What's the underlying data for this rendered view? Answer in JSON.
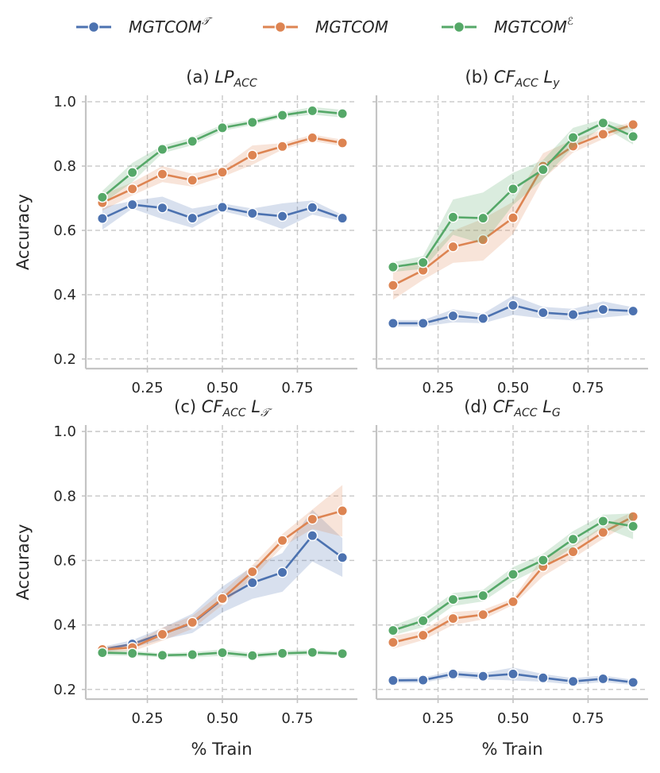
{
  "legend": [
    {
      "id": "t",
      "label": "MGTCOM",
      "sup": "𝒯",
      "color": "#4c72b0"
    },
    {
      "id": "m",
      "label": "MGTCOM",
      "sup": "",
      "color": "#dd8452"
    },
    {
      "id": "e",
      "label": "MGTCOM",
      "sup": "ℰ",
      "color": "#55a868"
    }
  ],
  "chart_data": [
    {
      "type": "line",
      "title_prefix": "(a)",
      "title_main": "LP",
      "title_sub": "ACC",
      "title_tail": "",
      "title_tail_sub": "",
      "xlabel": "",
      "ylabel": "Accuracy",
      "xticks": [
        0.25,
        0.5,
        0.75
      ],
      "xtick_labels": [
        "0.25",
        "0.50",
        "0.75"
      ],
      "yticks": [
        0.2,
        0.4,
        0.6,
        0.8,
        1.0
      ],
      "ytick_labels": [
        "0.2",
        "0.4",
        "0.6",
        "0.8",
        "1.0"
      ],
      "xlim": [
        0.05,
        0.95
      ],
      "ylim": [
        0.17,
        1.02
      ],
      "grid": true,
      "x": [
        0.1,
        0.2,
        0.3,
        0.4,
        0.5,
        0.6,
        0.7,
        0.8,
        0.9
      ],
      "series": [
        {
          "key": "t",
          "color": "#4c72b0",
          "values": [
            0.637,
            0.68,
            0.67,
            0.638,
            0.672,
            0.653,
            0.644,
            0.671,
            0.638
          ],
          "band": [
            0.035,
            0.012,
            0.035,
            0.03,
            0.012,
            0.015,
            0.04,
            0.022,
            0.01
          ]
        },
        {
          "key": "m",
          "color": "#dd8452",
          "values": [
            0.686,
            0.729,
            0.775,
            0.756,
            0.781,
            0.834,
            0.861,
            0.888,
            0.872
          ],
          "band": [
            0.025,
            0.02,
            0.025,
            0.02,
            0.015,
            0.03,
            0.01,
            0.01,
            0.01
          ]
        },
        {
          "key": "e",
          "color": "#55a868",
          "values": [
            0.703,
            0.78,
            0.852,
            0.877,
            0.919,
            0.936,
            0.958,
            0.972,
            0.963
          ],
          "band": [
            0.02,
            0.03,
            0.012,
            0.012,
            0.01,
            0.008,
            0.008,
            0.012,
            0.012
          ]
        }
      ]
    },
    {
      "type": "line",
      "title_prefix": "(b)",
      "title_main": "CF",
      "title_sub": "ACC",
      "title_tail": "L",
      "title_tail_sub": "y",
      "xlabel": "",
      "ylabel": "",
      "xticks": [
        0.25,
        0.5,
        0.75
      ],
      "xtick_labels": [
        "0.25",
        "0.50",
        "0.75"
      ],
      "yticks": [
        0.2,
        0.4,
        0.6,
        0.8,
        1.0
      ],
      "ytick_labels": [
        "",
        "",
        "",
        "",
        ""
      ],
      "xlim": [
        0.05,
        0.95
      ],
      "ylim": [
        0.17,
        1.02
      ],
      "grid": true,
      "x": [
        0.1,
        0.2,
        0.3,
        0.4,
        0.5,
        0.6,
        0.7,
        0.8,
        0.9
      ],
      "series": [
        {
          "key": "t",
          "color": "#4c72b0",
          "values": [
            0.311,
            0.311,
            0.334,
            0.326,
            0.367,
            0.344,
            0.338,
            0.354,
            0.349
          ],
          "band": [
            0.01,
            0.01,
            0.02,
            0.015,
            0.03,
            0.018,
            0.018,
            0.025,
            0.012
          ]
        },
        {
          "key": "m",
          "color": "#dd8452",
          "values": [
            0.429,
            0.476,
            0.549,
            0.571,
            0.639,
            0.8,
            0.862,
            0.899,
            0.929
          ],
          "band": [
            0.045,
            0.03,
            0.05,
            0.065,
            0.05,
            0.04,
            0.02,
            0.015,
            0.008
          ]
        },
        {
          "key": "e",
          "color": "#55a868",
          "values": [
            0.486,
            0.5,
            0.641,
            0.638,
            0.729,
            0.789,
            0.889,
            0.934,
            0.892
          ],
          "band": [
            0.015,
            0.02,
            0.055,
            0.08,
            0.05,
            0.03,
            0.03,
            0.012,
            0.025
          ]
        }
      ]
    },
    {
      "type": "line",
      "title_prefix": "(c)",
      "title_main": "CF",
      "title_sub": "ACC",
      "title_tail": "L",
      "title_tail_sub": "𝒯",
      "xlabel": "% Train",
      "ylabel": "Accuracy",
      "xticks": [
        0.25,
        0.5,
        0.75
      ],
      "xtick_labels": [
        "0.25",
        "0.50",
        "0.75"
      ],
      "yticks": [
        0.2,
        0.4,
        0.6,
        0.8,
        1.0
      ],
      "ytick_labels": [
        "0.2",
        "0.4",
        "0.6",
        "0.8",
        "1.0"
      ],
      "xlim": [
        0.05,
        0.95
      ],
      "ylim": [
        0.17,
        1.02
      ],
      "grid": true,
      "x": [
        0.1,
        0.2,
        0.3,
        0.4,
        0.5,
        0.6,
        0.7,
        0.8,
        0.9
      ],
      "series": [
        {
          "key": "t",
          "color": "#4c72b0",
          "values": [
            0.324,
            0.341,
            0.373,
            0.405,
            0.479,
            0.531,
            0.563,
            0.677,
            0.609
          ],
          "band": [
            0.008,
            0.012,
            0.018,
            0.03,
            0.04,
            0.05,
            0.06,
            0.08,
            0.06
          ]
        },
        {
          "key": "m",
          "color": "#dd8452",
          "values": [
            0.324,
            0.33,
            0.371,
            0.408,
            0.482,
            0.565,
            0.662,
            0.728,
            0.754
          ],
          "band": [
            0.008,
            0.012,
            0.02,
            0.02,
            0.02,
            0.02,
            0.02,
            0.03,
            0.08
          ]
        },
        {
          "key": "e",
          "color": "#55a868",
          "values": [
            0.314,
            0.312,
            0.306,
            0.308,
            0.314,
            0.305,
            0.312,
            0.315,
            0.311
          ],
          "band": [
            0.008,
            0.008,
            0.006,
            0.008,
            0.01,
            0.008,
            0.008,
            0.008,
            0.006
          ]
        }
      ]
    },
    {
      "type": "line",
      "title_prefix": "(d)",
      "title_main": "CF",
      "title_sub": "ACC",
      "title_tail": "L",
      "title_tail_sub": "G",
      "xlabel": "% Train",
      "ylabel": "",
      "xticks": [
        0.25,
        0.5,
        0.75
      ],
      "xtick_labels": [
        "0.25",
        "0.50",
        "0.75"
      ],
      "yticks": [
        0.2,
        0.4,
        0.6,
        0.8,
        1.0
      ],
      "ytick_labels": [
        "",
        "",
        "",
        "",
        ""
      ],
      "xlim": [
        0.05,
        0.95
      ],
      "ylim": [
        0.17,
        1.02
      ],
      "grid": true,
      "x": [
        0.1,
        0.2,
        0.3,
        0.4,
        0.5,
        0.6,
        0.7,
        0.8,
        0.9
      ],
      "series": [
        {
          "key": "t",
          "color": "#4c72b0",
          "values": [
            0.228,
            0.229,
            0.248,
            0.241,
            0.248,
            0.236,
            0.225,
            0.233,
            0.222
          ],
          "band": [
            0.008,
            0.008,
            0.01,
            0.01,
            0.02,
            0.012,
            0.01,
            0.01,
            0.008
          ]
        },
        {
          "key": "m",
          "color": "#dd8452",
          "values": [
            0.346,
            0.368,
            0.42,
            0.432,
            0.472,
            0.581,
            0.627,
            0.687,
            0.736
          ],
          "band": [
            0.02,
            0.015,
            0.02,
            0.015,
            0.01,
            0.03,
            0.02,
            0.02,
            0.015
          ]
        },
        {
          "key": "e",
          "color": "#55a868",
          "values": [
            0.383,
            0.413,
            0.479,
            0.491,
            0.557,
            0.601,
            0.666,
            0.722,
            0.706
          ],
          "band": [
            0.015,
            0.02,
            0.02,
            0.018,
            0.022,
            0.02,
            0.025,
            0.02,
            0.04
          ]
        }
      ]
    }
  ]
}
